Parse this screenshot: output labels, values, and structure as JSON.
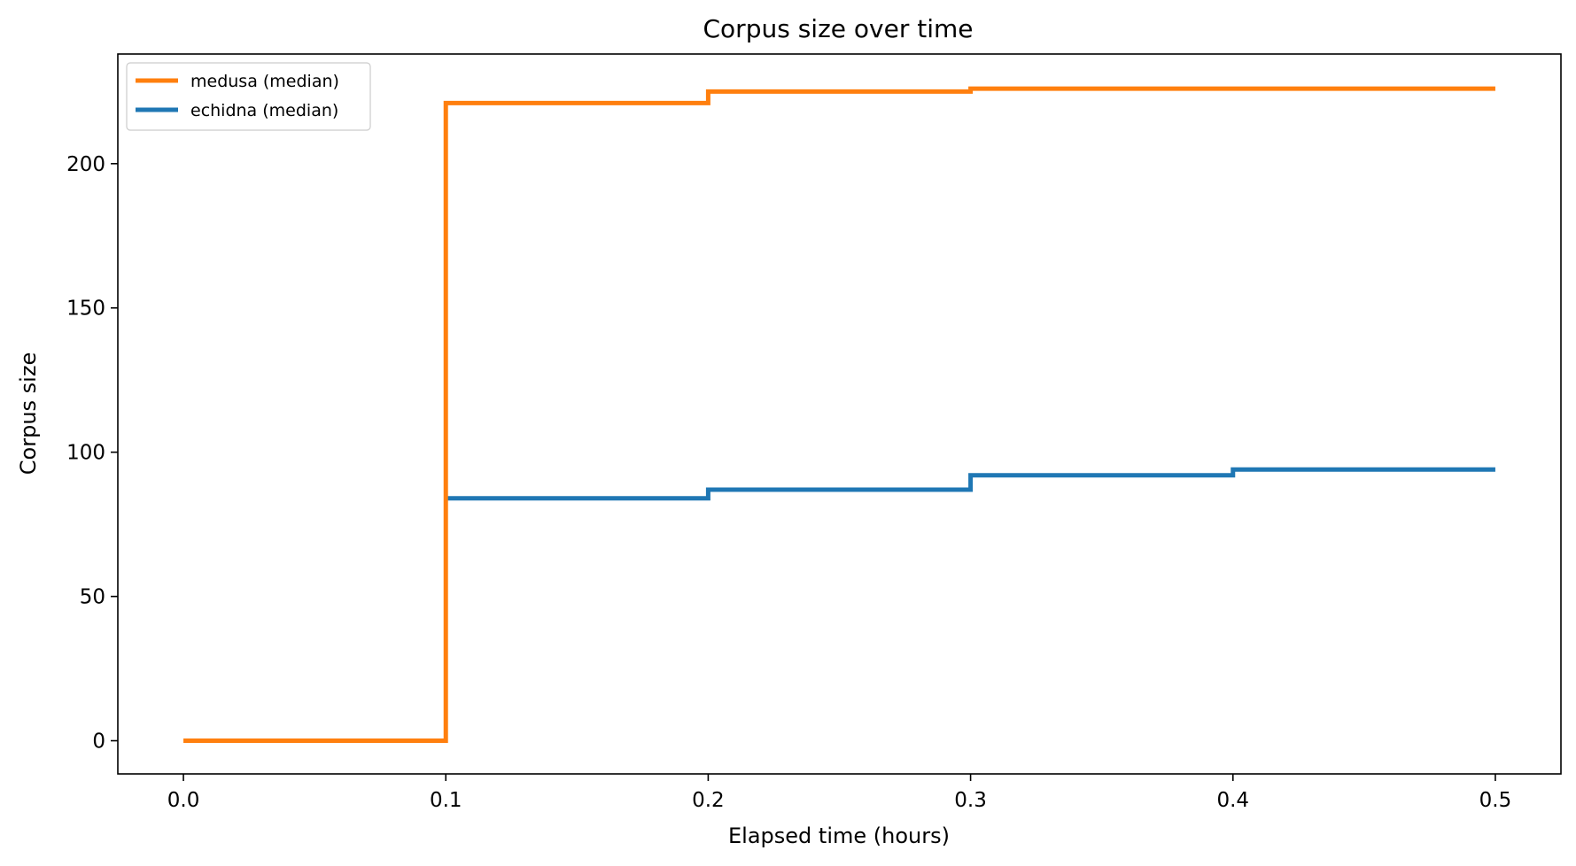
{
  "chart_data": {
    "type": "line",
    "step": "post",
    "title": "Corpus size over time",
    "xlabel": "Elapsed time (hours)",
    "ylabel": "Corpus size",
    "xlim": [
      -0.025,
      0.525
    ],
    "ylim": [
      -11.5,
      238
    ],
    "xticks": [
      0.0,
      0.1,
      0.2,
      0.3,
      0.4,
      0.5
    ],
    "xtick_labels": [
      "0.0",
      "0.1",
      "0.2",
      "0.3",
      "0.4",
      "0.5"
    ],
    "yticks": [
      0,
      50,
      100,
      150,
      200
    ],
    "ytick_labels": [
      "0",
      "50",
      "100",
      "150",
      "200"
    ],
    "grid": false,
    "legend_position": "upper-left",
    "series": [
      {
        "name": "medusa (median)",
        "color": "#ff7f0e",
        "x": [
          0.0,
          0.1,
          0.2,
          0.3,
          0.4,
          0.5
        ],
        "y": [
          0,
          221,
          225,
          226,
          226,
          226
        ]
      },
      {
        "name": "echidna (median)",
        "color": "#1f77b4",
        "x": [
          0.1,
          0.2,
          0.3,
          0.4,
          0.5
        ],
        "y": [
          84,
          87,
          92,
          94,
          94
        ]
      }
    ]
  }
}
